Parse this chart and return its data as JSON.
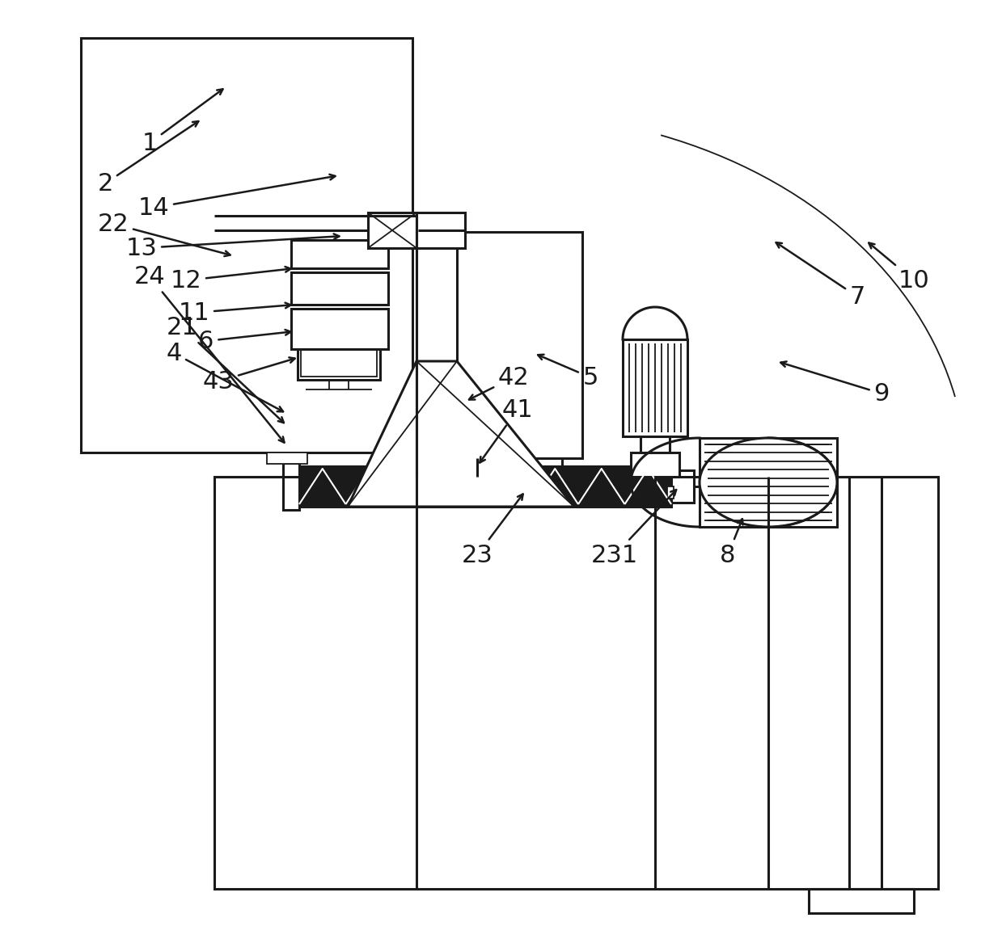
{
  "bg_color": "#ffffff",
  "lc": "#1a1a1a",
  "lw": 2.2,
  "lw_thin": 1.3,
  "lw_thick": 4.0,
  "fig_width": 12.39,
  "fig_height": 11.67
}
